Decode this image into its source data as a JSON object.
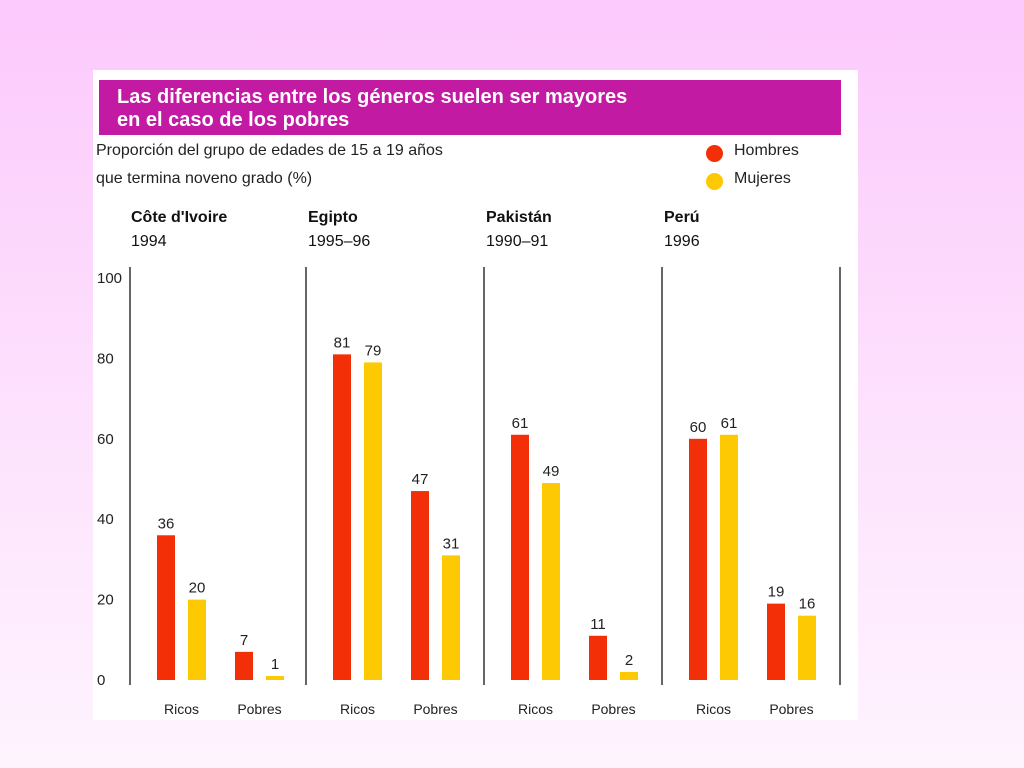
{
  "colors": {
    "title_band": "#c21aa2",
    "hombres": "#f22f06",
    "mujeres": "#fdc902"
  },
  "chart_data": {
    "type": "bar",
    "title": "Las diferencias entre los géneros suelen ser mayores en el caso de los pobres",
    "title_lines": [
      "Las diferencias entre los géneros suelen ser mayores",
      "en el caso de los pobres"
    ],
    "subtitle_lines": [
      "Proporción del grupo de edades de 15 a 19 años",
      "que termina noveno grado (%)"
    ],
    "ylim": [
      0,
      100
    ],
    "yticks": [
      "0",
      "20",
      "40",
      "60",
      "80",
      "100"
    ],
    "legend": [
      {
        "name": "Hombres",
        "color": "#f22f06"
      },
      {
        "name": "Mujeres",
        "color": "#fdc902"
      }
    ],
    "legend_position": "top-right",
    "series_names": [
      "Hombres",
      "Mujeres"
    ],
    "groups": [
      {
        "name": "Côte d'Ivoire",
        "year": "1994",
        "categories": [
          "Ricos",
          "Pobres"
        ],
        "series": [
          {
            "name": "Hombres",
            "values": [
              36,
              7
            ]
          },
          {
            "name": "Mujeres",
            "values": [
              20,
              1
            ]
          }
        ]
      },
      {
        "name": "Egipto",
        "year": "1995–96",
        "categories": [
          "Ricos",
          "Pobres"
        ],
        "series": [
          {
            "name": "Hombres",
            "values": [
              81,
              47
            ]
          },
          {
            "name": "Mujeres",
            "values": [
              79,
              31
            ]
          }
        ]
      },
      {
        "name": "Pakistán",
        "year": "1990–91",
        "categories": [
          "Ricos",
          "Pobres"
        ],
        "series": [
          {
            "name": "Hombres",
            "values": [
              61,
              11
            ]
          },
          {
            "name": "Mujeres",
            "values": [
              49,
              2
            ]
          }
        ]
      },
      {
        "name": "Perú",
        "year": "1996",
        "categories": [
          "Ricos",
          "Pobres"
        ],
        "series": [
          {
            "name": "Hombres",
            "values": [
              60,
              19
            ]
          },
          {
            "name": "Mujeres",
            "values": [
              61,
              16
            ]
          }
        ]
      }
    ]
  }
}
